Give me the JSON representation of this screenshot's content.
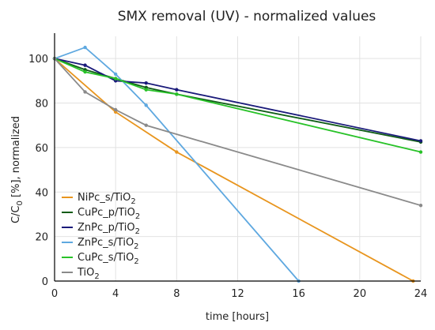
{
  "chart_data": {
    "type": "line",
    "title": "SMX removal (UV) - normalized values",
    "xlabel": "time [hours]",
    "ylabel_parts": [
      "C/C",
      "0",
      " [%], normalized"
    ],
    "xlim": [
      0,
      24
    ],
    "ylim": [
      0,
      110
    ],
    "x_ticks": [
      0,
      4,
      8,
      12,
      16,
      20,
      24
    ],
    "y_ticks": [
      0,
      20,
      40,
      60,
      80,
      100
    ],
    "grid": true,
    "legend_position": "left",
    "series": [
      {
        "name_parts": [
          "NiPc_s/TiO",
          "2"
        ],
        "color": "#e8951e",
        "x": [
          0,
          4,
          8,
          23.5
        ],
        "y": [
          100,
          76,
          58,
          0
        ]
      },
      {
        "name_parts": [
          "CuPc_p/TiO",
          "2"
        ],
        "color": "#0f5c16",
        "x": [
          0,
          2,
          4,
          6,
          8,
          24
        ],
        "y": [
          100,
          95,
          91,
          87,
          84,
          62.5
        ]
      },
      {
        "name_parts": [
          "ZnPc_p/TiO",
          "2"
        ],
        "color": "#1a1a7a",
        "x": [
          0,
          2,
          4,
          6,
          8,
          24
        ],
        "y": [
          100,
          97,
          90,
          89,
          86,
          63
        ]
      },
      {
        "name_parts": [
          "ZnPc_s/TiO",
          "2"
        ],
        "color": "#5ea8e0",
        "x": [
          0,
          2,
          4,
          6,
          16
        ],
        "y": [
          100,
          105,
          93,
          79,
          0
        ]
      },
      {
        "name_parts": [
          "CuPc_s/TiO",
          "2"
        ],
        "color": "#28c228",
        "x": [
          0,
          2,
          4,
          6,
          8,
          24
        ],
        "y": [
          100,
          94,
          91,
          86,
          84,
          58
        ]
      },
      {
        "name_parts": [
          "TiO",
          "2"
        ],
        "color": "#8a8a8a",
        "x": [
          0,
          2,
          4,
          6,
          24
        ],
        "y": [
          100,
          85,
          77,
          70,
          34
        ]
      }
    ]
  }
}
